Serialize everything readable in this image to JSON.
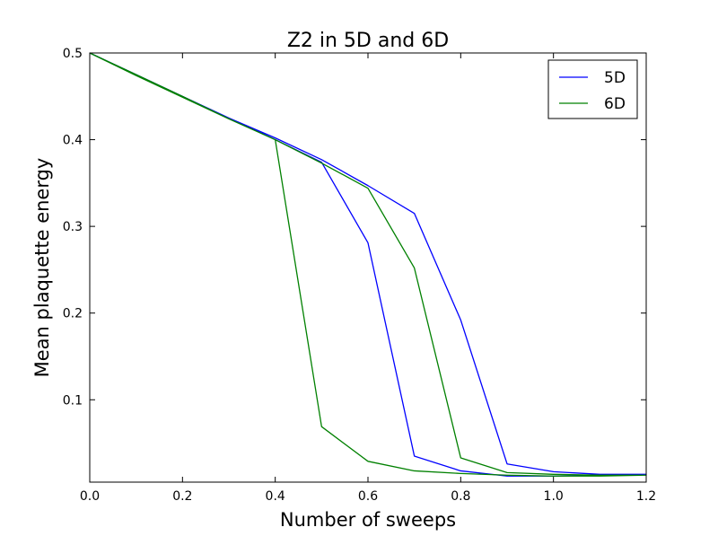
{
  "chart_data": {
    "type": "line",
    "title": "Z2 in 5D and 6D",
    "xlabel": "Number of sweeps",
    "ylabel": "Mean plaquette energy",
    "xlim": [
      0.0,
      1.2
    ],
    "ylim": [
      0.005,
      0.5
    ],
    "xticks": [
      "0.0",
      "0.2",
      "0.4",
      "0.6",
      "0.8",
      "1.0",
      "1.2"
    ],
    "yticks": [
      "0.1",
      "0.2",
      "0.3",
      "0.4",
      "0.5"
    ],
    "grid": false,
    "legend_position": "top-right",
    "series": [
      {
        "name": "5D",
        "color": "#0000ff",
        "points": [
          [
            0.0,
            0.5
          ],
          [
            0.1,
            0.475
          ],
          [
            0.2,
            0.45
          ],
          [
            0.3,
            0.425
          ],
          [
            0.4,
            0.402
          ],
          [
            0.5,
            0.377
          ],
          [
            0.6,
            0.347
          ],
          [
            0.7,
            0.315
          ],
          [
            0.8,
            0.192
          ],
          [
            0.9,
            0.026
          ],
          [
            1.0,
            0.017
          ],
          [
            1.1,
            0.014
          ],
          [
            1.2,
            0.014
          ],
          [
            1.1,
            0.013
          ],
          [
            1.0,
            0.012
          ],
          [
            0.9,
            0.012
          ],
          [
            0.8,
            0.018
          ],
          [
            0.7,
            0.035
          ],
          [
            0.6,
            0.281
          ],
          [
            0.5,
            0.374
          ],
          [
            0.4,
            0.4
          ],
          [
            0.3,
            0.425
          ],
          [
            0.2,
            0.45
          ],
          [
            0.1,
            0.475
          ],
          [
            0.0,
            0.5
          ]
        ]
      },
      {
        "name": "6D",
        "color": "#008000",
        "points": [
          [
            0.0,
            0.5
          ],
          [
            0.1,
            0.475
          ],
          [
            0.2,
            0.45
          ],
          [
            0.3,
            0.424
          ],
          [
            0.4,
            0.4
          ],
          [
            0.5,
            0.373
          ],
          [
            0.6,
            0.344
          ],
          [
            0.7,
            0.252
          ],
          [
            0.8,
            0.033
          ],
          [
            0.9,
            0.016
          ],
          [
            1.0,
            0.014
          ],
          [
            1.1,
            0.013
          ],
          [
            1.2,
            0.013
          ],
          [
            1.1,
            0.012
          ],
          [
            1.0,
            0.012
          ],
          [
            0.9,
            0.013
          ],
          [
            0.8,
            0.015
          ],
          [
            0.7,
            0.018
          ],
          [
            0.6,
            0.029
          ],
          [
            0.5,
            0.069
          ],
          [
            0.4,
            0.4
          ],
          [
            0.3,
            0.424
          ],
          [
            0.2,
            0.449
          ],
          [
            0.1,
            0.474
          ],
          [
            0.0,
            0.5
          ]
        ]
      }
    ]
  }
}
